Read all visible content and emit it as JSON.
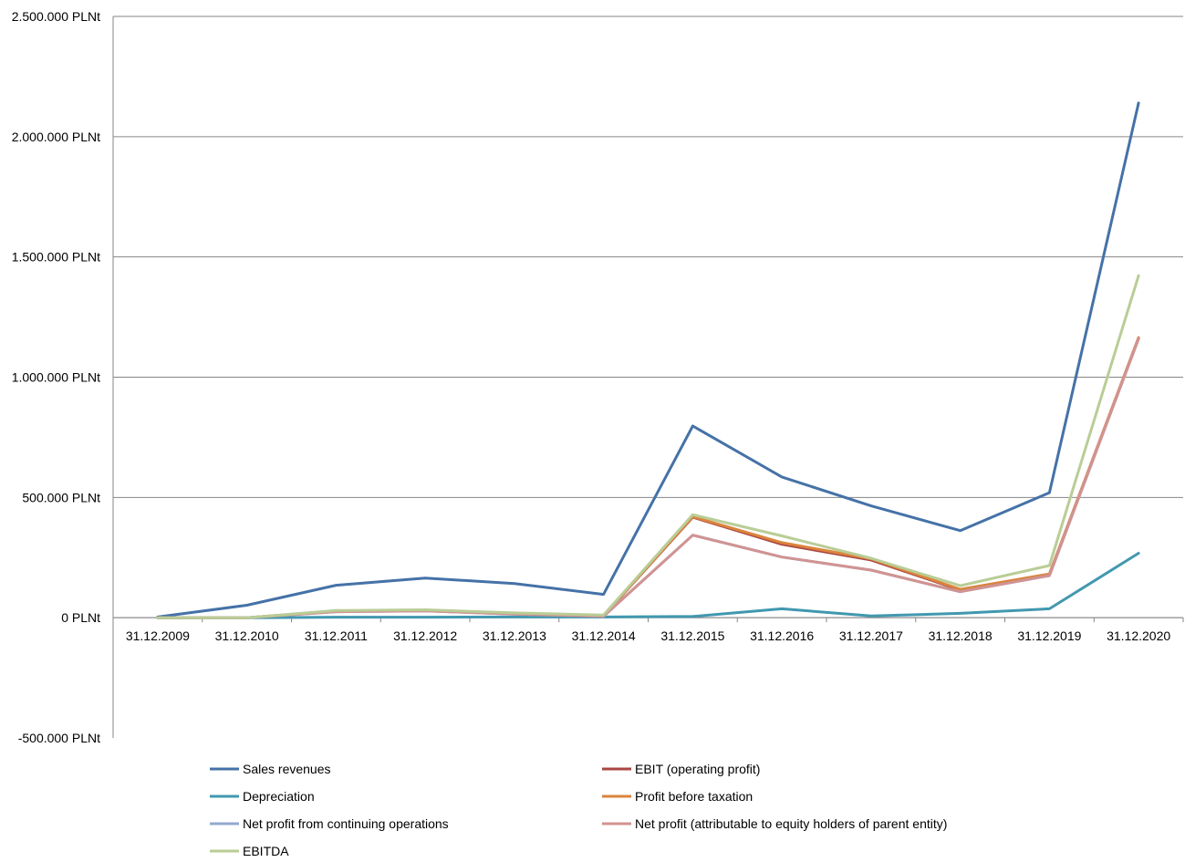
{
  "chart_data": {
    "type": "line",
    "title": "",
    "xlabel": "",
    "ylabel": "",
    "unit_suffix": " PLNt",
    "ylim": [
      -500000,
      2500000
    ],
    "ytick_step": 500000,
    "grid": true,
    "legend_position": "bottom",
    "categories": [
      "31.12.2009",
      "31.12.2010",
      "31.12.2011",
      "31.12.2012",
      "31.12.2013",
      "31.12.2014",
      "31.12.2015",
      "31.12.2016",
      "31.12.2017",
      "31.12.2018",
      "31.12.2019",
      "31.12.2020"
    ],
    "series": [
      {
        "name": "Sales revenues",
        "color": "#4572A7",
        "values": [
          3000,
          52000,
          135000,
          165000,
          142000,
          97000,
          797000,
          585000,
          465000,
          362000,
          520000,
          2140000
        ]
      },
      {
        "name": "EBIT (operating profit)",
        "color": "#AA4643",
        "values": [
          0,
          0,
          28000,
          30000,
          17000,
          8000,
          418000,
          305000,
          240000,
          115000,
          180000,
          1162000
        ]
      },
      {
        "name": "Depreciation",
        "color": "#4198AF",
        "values": [
          0,
          0,
          2000,
          2000,
          3000,
          3000,
          5000,
          37000,
          7000,
          18000,
          37000,
          268000
        ]
      },
      {
        "name": "Profit before taxation",
        "color": "#DB843D",
        "values": [
          0,
          0,
          28000,
          31000,
          18000,
          9000,
          420000,
          312000,
          245000,
          118000,
          182000,
          1165000
        ]
      },
      {
        "name": "Net profit from continuing operations",
        "color": "#93A9CF",
        "values": [
          0,
          0,
          25000,
          28000,
          15000,
          6000,
          343000,
          252000,
          198000,
          108000,
          175000,
          1160000
        ]
      },
      {
        "name": "Net profit (attributable to equity holders of parent entity)",
        "color": "#D19392",
        "values": [
          0,
          0,
          25000,
          28000,
          15000,
          6000,
          343000,
          252000,
          198000,
          108000,
          175000,
          1160000
        ]
      },
      {
        "name": "EBITDA",
        "color": "#B9CD96",
        "values": [
          0,
          0,
          30000,
          33000,
          20000,
          11000,
          428000,
          340000,
          247000,
          133000,
          217000,
          1422000
        ]
      }
    ]
  }
}
